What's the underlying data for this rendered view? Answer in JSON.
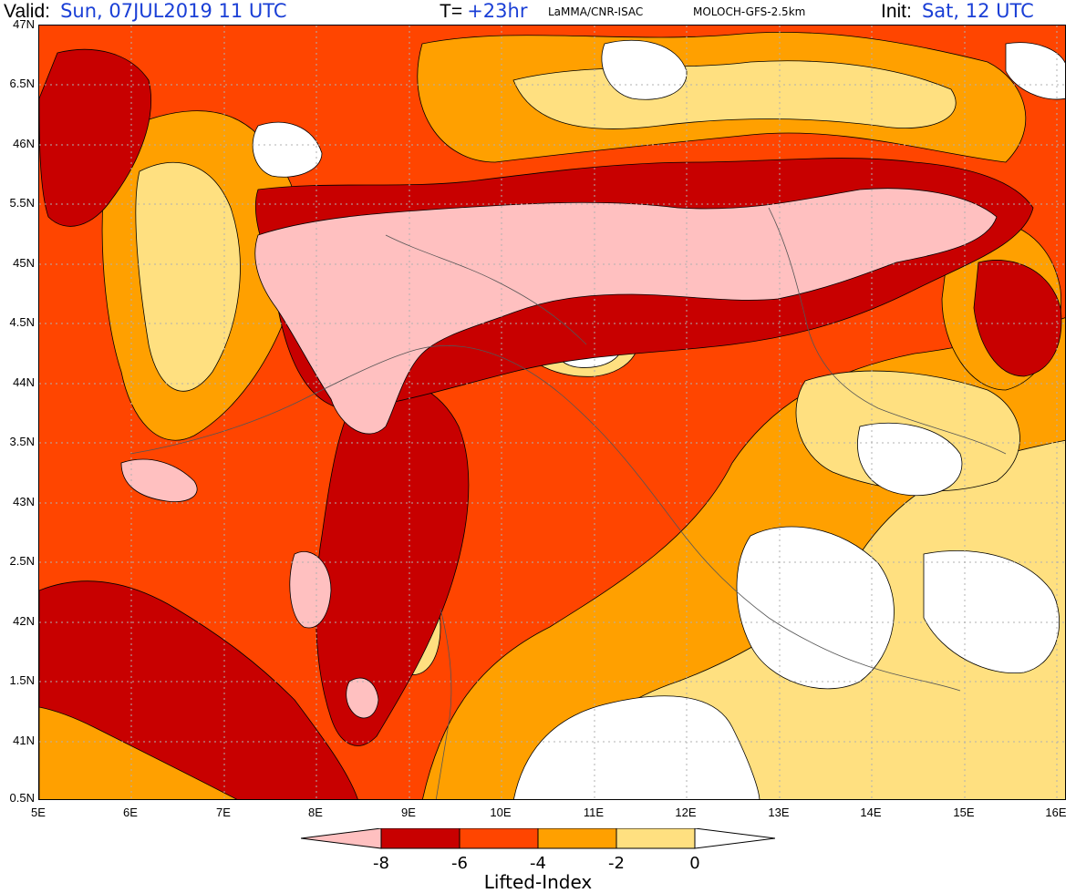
{
  "header": {
    "valid_label": "Valid:",
    "valid_value": "Sun, 07JUL2019   11 UTC",
    "t_label": "T=",
    "t_value": "+23hr",
    "source": "LaMMA/CNR-ISAC",
    "model": "MOLOCH-GFS-2.5km",
    "init_label": "Init:",
    "init_value": "Sat, 12 UTC"
  },
  "map": {
    "lat_labels": [
      "47N",
      "6.5N",
      "46N",
      "5.5N",
      "45N",
      "4.5N",
      "44N",
      "3.5N",
      "43N",
      "2.5N",
      "42N",
      "1.5N",
      "41N",
      "0.5N"
    ],
    "lon_labels": [
      "5E",
      "6E",
      "7E",
      "8E",
      "9E",
      "10E",
      "11E",
      "12E",
      "13E",
      "14E",
      "15E",
      "16E"
    ],
    "lat_range": [
      40.5,
      47
    ],
    "lon_range": [
      5,
      16.1
    ],
    "grid": true,
    "colors": {
      "lt_-8": "#ffc0c0",
      "-8_-6": "#c80000",
      "-6_-4": "#ff4500",
      "-4_-2": "#ffa000",
      "-2_0": "#ffe080",
      "gt_0": "#ffffff"
    }
  },
  "colorbar": {
    "title": "Lifted-Index",
    "tick_labels": [
      "-8",
      "-6",
      "-4",
      "-2",
      "0"
    ],
    "colors": [
      "#ffc0c0",
      "#c80000",
      "#ff4500",
      "#ffa000",
      "#ffe080",
      "#ffffff"
    ]
  }
}
